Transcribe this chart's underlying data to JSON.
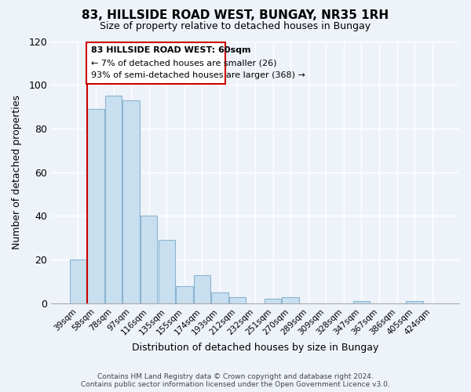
{
  "title": "83, HILLSIDE ROAD WEST, BUNGAY, NR35 1RH",
  "subtitle": "Size of property relative to detached houses in Bungay",
  "xlabel": "Distribution of detached houses by size in Bungay",
  "ylabel": "Number of detached properties",
  "footer_line1": "Contains HM Land Registry data © Crown copyright and database right 2024.",
  "footer_line2": "Contains public sector information licensed under the Open Government Licence v3.0.",
  "bin_labels": [
    "39sqm",
    "58sqm",
    "78sqm",
    "97sqm",
    "116sqm",
    "135sqm",
    "155sqm",
    "174sqm",
    "193sqm",
    "212sqm",
    "232sqm",
    "251sqm",
    "270sqm",
    "289sqm",
    "309sqm",
    "328sqm",
    "347sqm",
    "367sqm",
    "386sqm",
    "405sqm",
    "424sqm"
  ],
  "bar_values": [
    20,
    89,
    95,
    93,
    40,
    29,
    8,
    13,
    5,
    3,
    0,
    2,
    3,
    0,
    0,
    0,
    1,
    0,
    0,
    1,
    0
  ],
  "bar_color": "#c8dff0",
  "bar_edge_color": "#8ab4d0",
  "reference_line_color": "#cc0000",
  "ylim_max": 120,
  "yticks": [
    0,
    20,
    40,
    60,
    80,
    100,
    120
  ],
  "annotation_title": "83 HILLSIDE ROAD WEST: 60sqm",
  "annotation_line1": "← 7% of detached houses are smaller (26)",
  "annotation_line2": "93% of semi-detached houses are larger (368) →",
  "bg_color": "#eef3fa",
  "grid_color": "#ffffff",
  "annotation_box_facecolor": "#ffffff",
  "annotation_box_edgecolor": "#cc0000"
}
